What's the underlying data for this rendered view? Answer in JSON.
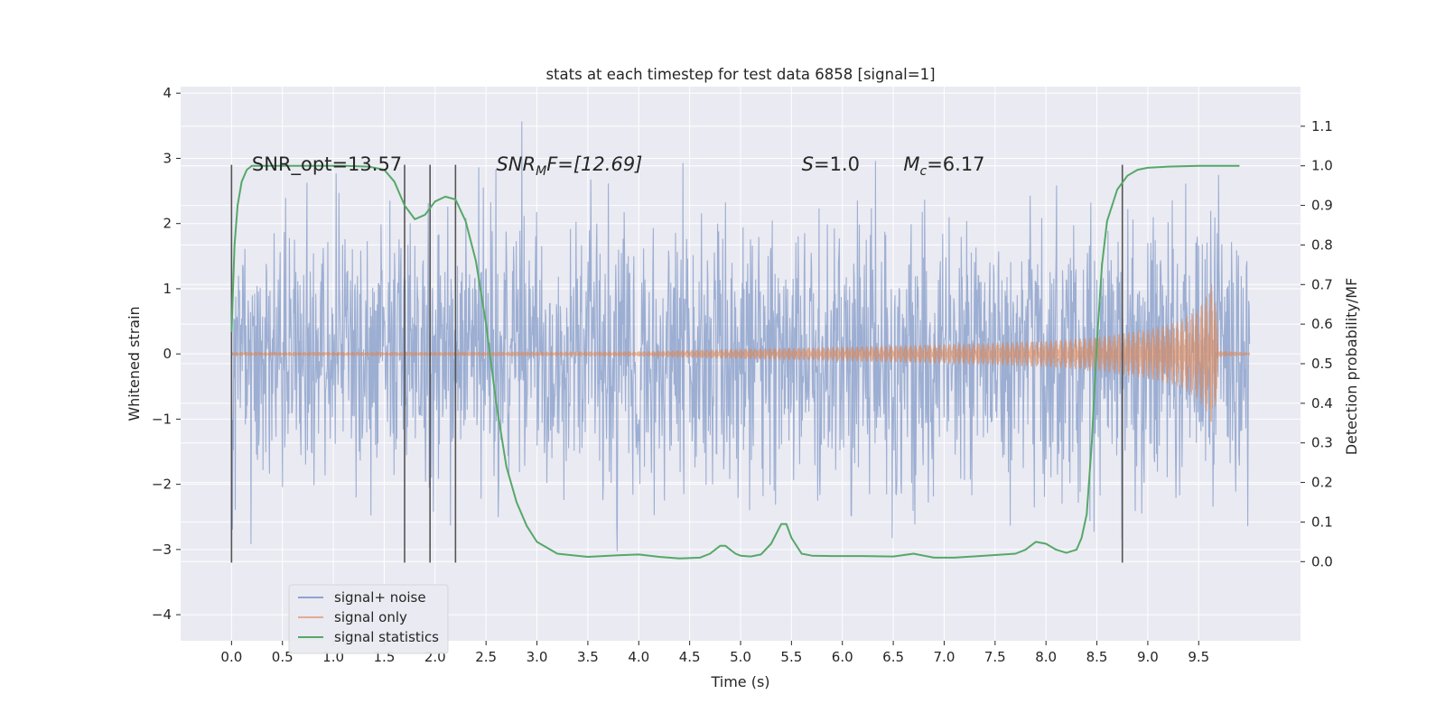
{
  "chart_data": {
    "type": "line",
    "title": "stats at each timestep for test data 6858 [signal=1]",
    "xlabel": "Time (s)",
    "ylabel": "Whitened strain",
    "y2label": "Detection probability/MF",
    "xlim": [
      -0.5,
      10.5
    ],
    "ylim": [
      -4.4,
      4.1
    ],
    "y2lim": [
      -0.2,
      1.2
    ],
    "x_ticks": [
      "0.0",
      "0.5",
      "1.0",
      "1.5",
      "2.0",
      "2.5",
      "3.0",
      "3.5",
      "4.0",
      "4.5",
      "5.0",
      "5.5",
      "6.0",
      "6.5",
      "7.0",
      "7.5",
      "8.0",
      "8.5",
      "9.0",
      "9.5"
    ],
    "y_ticks": [
      "−4",
      "−3",
      "−2",
      "−1",
      "0",
      "1",
      "2",
      "3",
      "4"
    ],
    "y2_ticks": [
      "0.0",
      "0.1",
      "0.2",
      "0.3",
      "0.4",
      "0.5",
      "0.6",
      "0.7",
      "0.8",
      "0.9",
      "1.0",
      "1.1"
    ],
    "grid": true,
    "legend_placement": "lower left",
    "annotations": [
      {
        "id": "snr-opt",
        "text": "SNR_opt=13.57",
        "x": 0.2,
        "y": 2.92,
        "italic": false
      },
      {
        "id": "snr-mf",
        "main": "SNR",
        "sub": "M",
        "rest": "F=[12.69]",
        "x": 2.6,
        "y": 2.92,
        "italic": true
      },
      {
        "id": "s-val",
        "main": "S",
        "rest": "=1.0",
        "x": 5.6,
        "y": 2.92,
        "italic": true
      },
      {
        "id": "mc-val",
        "main": "M",
        "sub": "c",
        "rest": "=6.17",
        "x": 6.6,
        "y": 2.92,
        "italic": true
      }
    ],
    "vlines": [
      0.0,
      1.7,
      1.95,
      2.2,
      8.75
    ],
    "vline_range": [
      -3.2,
      2.9
    ],
    "series": [
      {
        "name": "signal+ noise",
        "color": "#8ea3cc",
        "description": "whitened noisy strain, ~1 sigma gaussian with peaks up to about +/-3.7",
        "x_range": [
          0.0,
          10.0
        ],
        "std": 1.0,
        "peak": 3.75
      },
      {
        "name": "signal only",
        "color": "#dd8452",
        "description": "chirp waveform, amplitude grows to ~1.2 at merger t=9.65 then rings down",
        "envelope": [
          [
            0.0,
            0.03
          ],
          [
            2.0,
            0.03
          ],
          [
            4.0,
            0.04
          ],
          [
            5.0,
            0.08
          ],
          [
            6.0,
            0.11
          ],
          [
            7.0,
            0.15
          ],
          [
            8.0,
            0.2
          ],
          [
            8.5,
            0.26
          ],
          [
            9.0,
            0.38
          ],
          [
            9.3,
            0.5
          ],
          [
            9.5,
            0.7
          ],
          [
            9.6,
            0.95
          ],
          [
            9.65,
            1.2
          ],
          [
            9.7,
            0.05
          ],
          [
            10.0,
            0.02
          ]
        ],
        "merger_time": 9.65
      },
      {
        "name": "signal statistics",
        "color": "#55a868",
        "axis": "right",
        "x": [
          0.0,
          0.03,
          0.06,
          0.1,
          0.15,
          0.2,
          0.3,
          0.5,
          0.8,
          1.1,
          1.35,
          1.5,
          1.6,
          1.7,
          1.8,
          1.9,
          2.0,
          2.1,
          2.2,
          2.3,
          2.4,
          2.5,
          2.6,
          2.7,
          2.8,
          2.9,
          3.0,
          3.2,
          3.5,
          3.8,
          4.0,
          4.2,
          4.4,
          4.6,
          4.7,
          4.8,
          4.85,
          4.9,
          4.95,
          5.0,
          5.1,
          5.2,
          5.3,
          5.4,
          5.45,
          5.5,
          5.6,
          5.7,
          5.9,
          6.2,
          6.5,
          6.7,
          6.9,
          7.1,
          7.4,
          7.7,
          7.8,
          7.9,
          8.0,
          8.1,
          8.2,
          8.3,
          8.35,
          8.4,
          8.45,
          8.5,
          8.55,
          8.6,
          8.7,
          8.8,
          8.9,
          9.0,
          9.2,
          9.5,
          9.9
        ],
        "y": [
          0.58,
          0.8,
          0.9,
          0.96,
          0.99,
          1.0,
          1.0,
          1.0,
          1.0,
          1.0,
          0.998,
          0.99,
          0.96,
          0.9,
          0.865,
          0.876,
          0.91,
          0.922,
          0.915,
          0.86,
          0.76,
          0.6,
          0.4,
          0.24,
          0.15,
          0.09,
          0.05,
          0.02,
          0.012,
          0.016,
          0.018,
          0.012,
          0.008,
          0.01,
          0.02,
          0.04,
          0.04,
          0.03,
          0.02,
          0.015,
          0.013,
          0.018,
          0.045,
          0.095,
          0.095,
          0.06,
          0.02,
          0.015,
          0.014,
          0.014,
          0.013,
          0.02,
          0.01,
          0.01,
          0.015,
          0.02,
          0.03,
          0.05,
          0.045,
          0.03,
          0.022,
          0.03,
          0.06,
          0.12,
          0.3,
          0.55,
          0.75,
          0.86,
          0.94,
          0.975,
          0.99,
          0.995,
          0.998,
          1.0,
          1.0
        ]
      }
    ]
  }
}
